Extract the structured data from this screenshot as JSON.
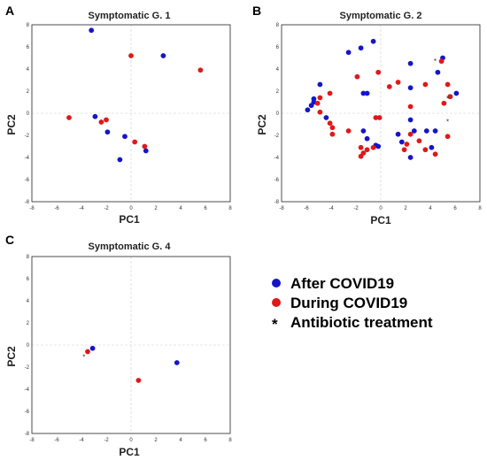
{
  "colors": {
    "after": "#1515c8",
    "during": "#e01818",
    "grid": "#cfcfcf"
  },
  "legend": {
    "items": [
      {
        "marker": "●",
        "color": "#1515c8",
        "label": "After COVID19"
      },
      {
        "marker": "●",
        "color": "#e01818",
        "label": "During COVID19"
      },
      {
        "marker": "*",
        "color": "#222222",
        "label": "Antibiotic treatment"
      }
    ]
  },
  "chart_data": [
    {
      "type": "scatter",
      "panel": "A",
      "title": "Symptomatic G. 1",
      "xlabel": "PC1",
      "ylabel": "PC2",
      "xlim": [
        -8,
        8
      ],
      "ylim": [
        -8,
        8
      ],
      "xticks": [
        "-8",
        "-6",
        "-4",
        "-2",
        "0",
        "2",
        "4",
        "6",
        "8"
      ],
      "yticks": [
        "-8",
        "-6",
        "-4",
        "-2",
        "0",
        "2",
        "4",
        "6",
        "8"
      ],
      "grid": "dashed zero lines",
      "series": [
        {
          "name": "After COVID19",
          "color": "#1515c8",
          "points": [
            [
              -3.2,
              7.5
            ],
            [
              2.6,
              5.2
            ],
            [
              -2.9,
              -0.3
            ],
            [
              -1.9,
              -1.7
            ],
            [
              -0.5,
              -2.1
            ],
            [
              1.2,
              -3.4
            ],
            [
              -0.9,
              -4.2
            ]
          ]
        },
        {
          "name": "During COVID19",
          "color": "#e01818",
          "points": [
            [
              0.0,
              5.2
            ],
            [
              5.6,
              3.9
            ],
            [
              -5.0,
              -0.4
            ],
            [
              -2.4,
              -0.8
            ],
            [
              -2.0,
              -0.6
            ],
            [
              0.3,
              -2.6
            ],
            [
              1.1,
              -3.0
            ]
          ]
        }
      ],
      "antibiotic": []
    },
    {
      "type": "scatter",
      "panel": "B",
      "title": "Symptomatic G. 2",
      "xlabel": "PC1",
      "ylabel": "PC2",
      "xlim": [
        -8,
        8
      ],
      "ylim": [
        -8,
        8
      ],
      "xticks": [
        "-8",
        "-6",
        "-4",
        "-2",
        "0",
        "2",
        "4",
        "6",
        "8"
      ],
      "yticks": [
        "-8",
        "-6",
        "-4",
        "-2",
        "0",
        "2",
        "4",
        "6",
        "8"
      ],
      "grid": "dashed zero lines",
      "series": [
        {
          "name": "After COVID19",
          "color": "#1515c8",
          "points": [
            [
              -0.6,
              6.5
            ],
            [
              -1.6,
              5.9
            ],
            [
              -2.6,
              5.5
            ],
            [
              2.4,
              4.5
            ],
            [
              5.0,
              5.0
            ],
            [
              4.6,
              3.7
            ],
            [
              2.4,
              2.3
            ],
            [
              5.6,
              1.5
            ],
            [
              6.1,
              1.8
            ],
            [
              -4.9,
              2.6
            ],
            [
              -5.4,
              1.3
            ],
            [
              -5.6,
              0.7
            ],
            [
              -5.9,
              0.3
            ],
            [
              -4.4,
              -0.4
            ],
            [
              -1.4,
              1.8
            ],
            [
              -1.1,
              1.8
            ],
            [
              -1.4,
              -1.6
            ],
            [
              -1.1,
              -2.3
            ],
            [
              2.4,
              -0.6
            ],
            [
              1.4,
              -1.9
            ],
            [
              2.7,
              -1.6
            ],
            [
              3.7,
              -1.6
            ],
            [
              4.4,
              -1.6
            ],
            [
              1.7,
              -2.6
            ],
            [
              -0.4,
              -2.9
            ],
            [
              -0.2,
              -3.0
            ],
            [
              4.1,
              -3.1
            ],
            [
              2.4,
              -4.0
            ],
            [
              -5.4,
              1.0
            ]
          ]
        },
        {
          "name": "During COVID19",
          "color": "#e01818",
          "points": [
            [
              -0.2,
              3.7
            ],
            [
              -1.9,
              3.3
            ],
            [
              -4.9,
              1.4
            ],
            [
              -4.1,
              1.8
            ],
            [
              -5.1,
              0.9
            ],
            [
              -4.9,
              0.1
            ],
            [
              -4.1,
              -0.9
            ],
            [
              -3.9,
              -1.3
            ],
            [
              -3.9,
              -1.9
            ],
            [
              -2.6,
              -1.6
            ],
            [
              -1.6,
              -3.1
            ],
            [
              -1.4,
              -3.6
            ],
            [
              -1.6,
              -3.9
            ],
            [
              -1.1,
              -3.3
            ],
            [
              -0.6,
              -3.1
            ],
            [
              -0.4,
              -0.4
            ],
            [
              1.4,
              2.8
            ],
            [
              0.7,
              2.4
            ],
            [
              2.4,
              0.6
            ],
            [
              2.4,
              -1.9
            ],
            [
              2.1,
              -2.8
            ],
            [
              1.9,
              -3.3
            ],
            [
              3.1,
              -2.5
            ],
            [
              3.6,
              -3.3
            ],
            [
              4.4,
              -3.7
            ],
            [
              3.6,
              2.6
            ],
            [
              4.9,
              4.7
            ],
            [
              5.4,
              2.6
            ],
            [
              5.6,
              1.5
            ],
            [
              5.1,
              0.9
            ],
            [
              5.4,
              -2.1
            ],
            [
              -0.1,
              -0.4
            ]
          ]
        }
      ],
      "antibiotic": [
        [
          4.4,
          4.9
        ],
        [
          5.4,
          -0.6
        ],
        [
          5.4,
          1.5
        ]
      ]
    },
    {
      "type": "scatter",
      "panel": "C",
      "title": "Symptomatic G. 4",
      "xlabel": "PC1",
      "ylabel": "PC2",
      "xlim": [
        -8,
        8
      ],
      "ylim": [
        -8,
        8
      ],
      "xticks": [
        "-8",
        "-6",
        "-4",
        "-2",
        "0",
        "2",
        "4",
        "6",
        "8"
      ],
      "yticks": [
        "-8",
        "-6",
        "-4",
        "-2",
        "0",
        "2",
        "4",
        "6",
        "8"
      ],
      "grid": "dashed zero lines",
      "series": [
        {
          "name": "After COVID19",
          "color": "#1515c8",
          "points": [
            [
              -3.1,
              -0.3
            ],
            [
              3.7,
              -1.6
            ]
          ]
        },
        {
          "name": "During COVID19",
          "color": "#e01818",
          "points": [
            [
              -3.5,
              -0.6
            ],
            [
              0.6,
              -3.2
            ]
          ]
        }
      ],
      "antibiotic": [
        [
          -3.8,
          -0.9
        ]
      ]
    }
  ]
}
